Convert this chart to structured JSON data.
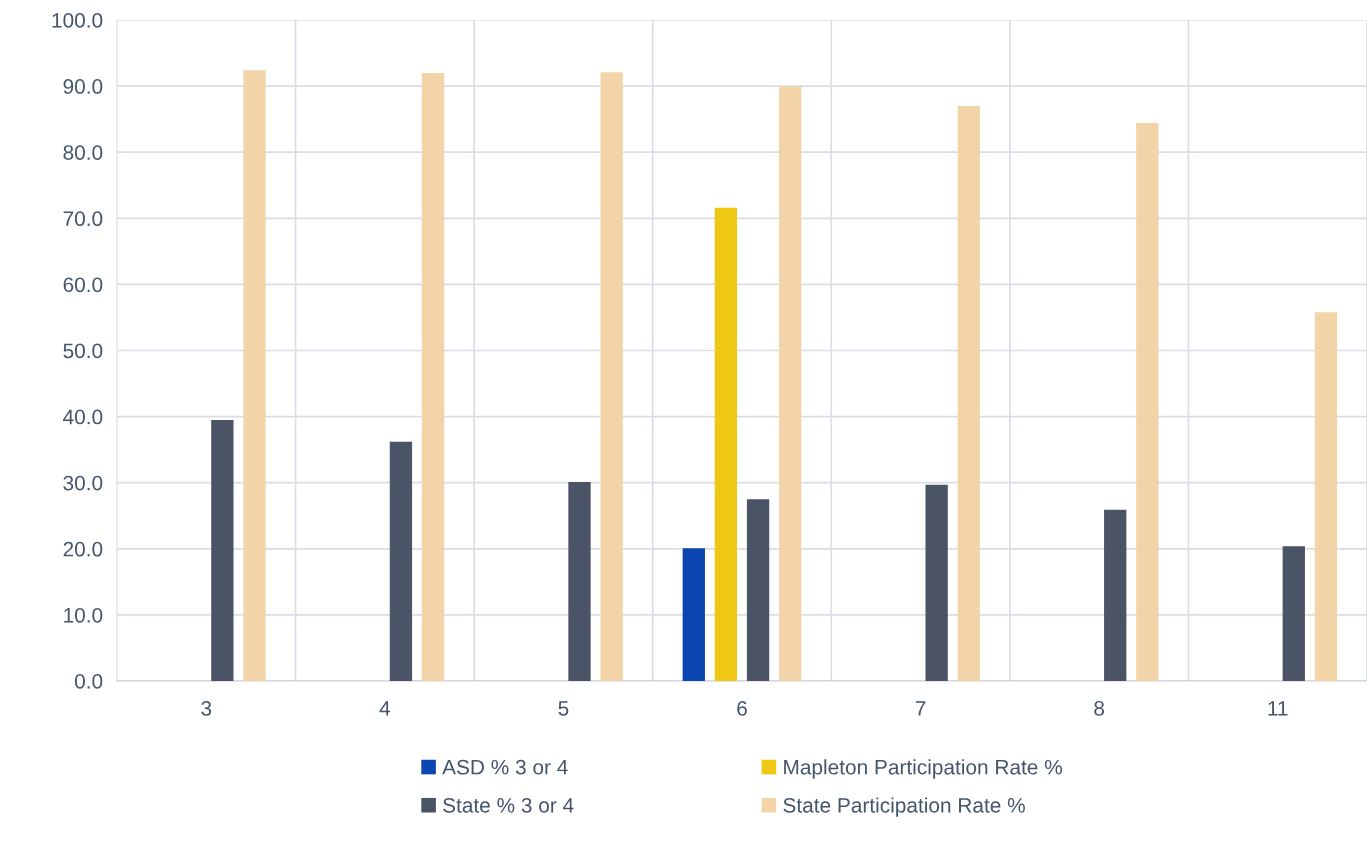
{
  "chart_data": {
    "type": "bar",
    "categories": [
      "3",
      "4",
      "5",
      "6",
      "7",
      "8",
      "11"
    ],
    "series": [
      {
        "name": "ASD % 3 or 4",
        "color": "#0a45b0",
        "values": [
          null,
          null,
          null,
          20.1,
          null,
          null,
          null
        ]
      },
      {
        "name": "Mapleton Participation Rate %",
        "color": "#efc813",
        "values": [
          null,
          null,
          null,
          71.6,
          null,
          null,
          null
        ]
      },
      {
        "name": "State % 3 or 4",
        "color": "#4b5466",
        "values": [
          39.5,
          36.2,
          30.1,
          27.5,
          29.7,
          25.9,
          20.4
        ]
      },
      {
        "name": "State Participation Rate %",
        "color": "#f3d4a8",
        "values": [
          92.4,
          92.0,
          92.1,
          90.0,
          87.0,
          84.4,
          55.8
        ]
      }
    ],
    "ylim": [
      0,
      100
    ],
    "yticks": [
      {
        "value": 0,
        "label": "0.0"
      },
      {
        "value": 10,
        "label": "10.0"
      },
      {
        "value": 20,
        "label": "20.0"
      },
      {
        "value": 30,
        "label": "30.0"
      },
      {
        "value": 40,
        "label": "40.0"
      },
      {
        "value": 50,
        "label": "50.0"
      },
      {
        "value": 60,
        "label": "60.0"
      },
      {
        "value": 70,
        "label": "70.0"
      },
      {
        "value": 80,
        "label": "80.0"
      },
      {
        "value": 90,
        "label": "90.0"
      },
      {
        "value": 100,
        "label": "100.0"
      }
    ],
    "grid": true,
    "legend": "bottom"
  }
}
